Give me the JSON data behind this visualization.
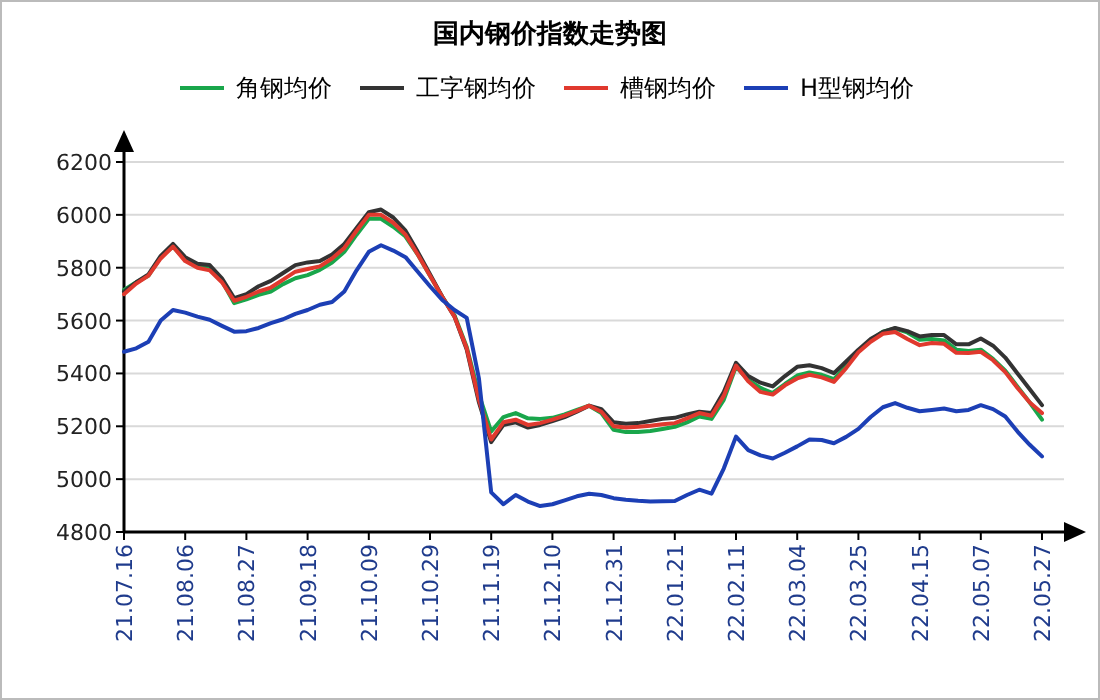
{
  "chart_data": {
    "type": "line",
    "title": "国内钢价指数走势图",
    "categories": [
      "21.07.16",
      null,
      null,
      null,
      null,
      "21.08.06",
      null,
      null,
      null,
      null,
      "21.08.27",
      null,
      null,
      null,
      null,
      "21.09.18",
      null,
      null,
      null,
      null,
      "21.10.09",
      null,
      null,
      null,
      null,
      "21.10.29",
      null,
      null,
      null,
      null,
      "21.11.19",
      null,
      null,
      null,
      null,
      "21.12.10",
      null,
      null,
      null,
      null,
      "21.12.31",
      null,
      null,
      null,
      null,
      "22.01.21",
      null,
      null,
      null,
      null,
      "22.02.11",
      null,
      null,
      null,
      null,
      "22.03.04",
      null,
      null,
      null,
      null,
      "22.03.25",
      null,
      null,
      null,
      null,
      "22.04.15",
      null,
      null,
      null,
      null,
      "22.05.07",
      null,
      null,
      null,
      null,
      "22.05.27"
    ],
    "series": [
      {
        "name": "角钢均价",
        "color": "#19a64b",
        "values": [
          5716,
          5745,
          5770,
          5840,
          5880,
          5830,
          5812,
          5800,
          5750,
          5666,
          5680,
          5697,
          5710,
          5738,
          5760,
          5772,
          5792,
          5820,
          5860,
          5925,
          5985,
          5985,
          5955,
          5918,
          5850,
          5770,
          5690,
          5620,
          5500,
          5320,
          5180,
          5235,
          5250,
          5230,
          5228,
          5232,
          5245,
          5262,
          5278,
          5250,
          5187,
          5178,
          5178,
          5182,
          5190,
          5198,
          5215,
          5237,
          5228,
          5300,
          5426,
          5375,
          5345,
          5326,
          5360,
          5392,
          5404,
          5395,
          5378,
          5430,
          5485,
          5525,
          5558,
          5570,
          5555,
          5527,
          5530,
          5525,
          5490,
          5485,
          5490,
          5455,
          5410,
          5350,
          5290,
          5225
        ]
      },
      {
        "name": "工字钢均价",
        "color": "#333333",
        "values": [
          5710,
          5745,
          5775,
          5845,
          5890,
          5840,
          5815,
          5810,
          5760,
          5685,
          5700,
          5730,
          5750,
          5780,
          5810,
          5820,
          5825,
          5850,
          5890,
          5950,
          6010,
          6020,
          5990,
          5940,
          5860,
          5775,
          5690,
          5615,
          5490,
          5290,
          5140,
          5205,
          5215,
          5195,
          5205,
          5220,
          5235,
          5255,
          5278,
          5265,
          5215,
          5210,
          5212,
          5220,
          5228,
          5232,
          5245,
          5255,
          5250,
          5330,
          5440,
          5390,
          5365,
          5351,
          5390,
          5425,
          5431,
          5420,
          5401,
          5445,
          5490,
          5530,
          5557,
          5572,
          5560,
          5540,
          5545,
          5545,
          5510,
          5510,
          5532,
          5505,
          5460,
          5400,
          5340,
          5280
        ]
      },
      {
        "name": "槽钢均价",
        "color": "#e0392e",
        "values": [
          5700,
          5740,
          5770,
          5835,
          5880,
          5825,
          5800,
          5790,
          5745,
          5675,
          5690,
          5710,
          5725,
          5755,
          5785,
          5795,
          5805,
          5835,
          5875,
          5940,
          6000,
          6000,
          5970,
          5925,
          5850,
          5770,
          5690,
          5615,
          5495,
          5300,
          5150,
          5215,
          5225,
          5205,
          5212,
          5225,
          5240,
          5258,
          5278,
          5255,
          5200,
          5195,
          5198,
          5202,
          5208,
          5212,
          5230,
          5250,
          5240,
          5315,
          5430,
          5370,
          5330,
          5320,
          5355,
          5381,
          5395,
          5385,
          5368,
          5420,
          5480,
          5520,
          5550,
          5557,
          5530,
          5507,
          5515,
          5512,
          5478,
          5477,
          5482,
          5450,
          5405,
          5345,
          5290,
          5250
        ]
      },
      {
        "name": "H型钢均价",
        "color": "#1c3fb5",
        "values": [
          5482,
          5495,
          5520,
          5600,
          5640,
          5630,
          5615,
          5603,
          5580,
          5558,
          5560,
          5572,
          5590,
          5605,
          5625,
          5640,
          5660,
          5670,
          5710,
          5790,
          5860,
          5885,
          5865,
          5840,
          5785,
          5730,
          5678,
          5640,
          5610,
          5380,
          4950,
          4905,
          4940,
          4915,
          4898,
          4905,
          4920,
          4935,
          4945,
          4940,
          4928,
          4922,
          4918,
          4915,
          4916,
          4917,
          4940,
          4960,
          4945,
          5040,
          5161,
          5110,
          5090,
          5078,
          5100,
          5124,
          5150,
          5148,
          5136,
          5160,
          5190,
          5235,
          5272,
          5288,
          5270,
          5257,
          5262,
          5267,
          5257,
          5262,
          5280,
          5265,
          5237,
          5180,
          5130,
          5086
        ]
      }
    ],
    "ylim": [
      4800,
      6200
    ],
    "yticks": [
      4800,
      5000,
      5200,
      5400,
      5600,
      5800,
      6000,
      6200
    ],
    "grid": "y",
    "legend": "top"
  }
}
